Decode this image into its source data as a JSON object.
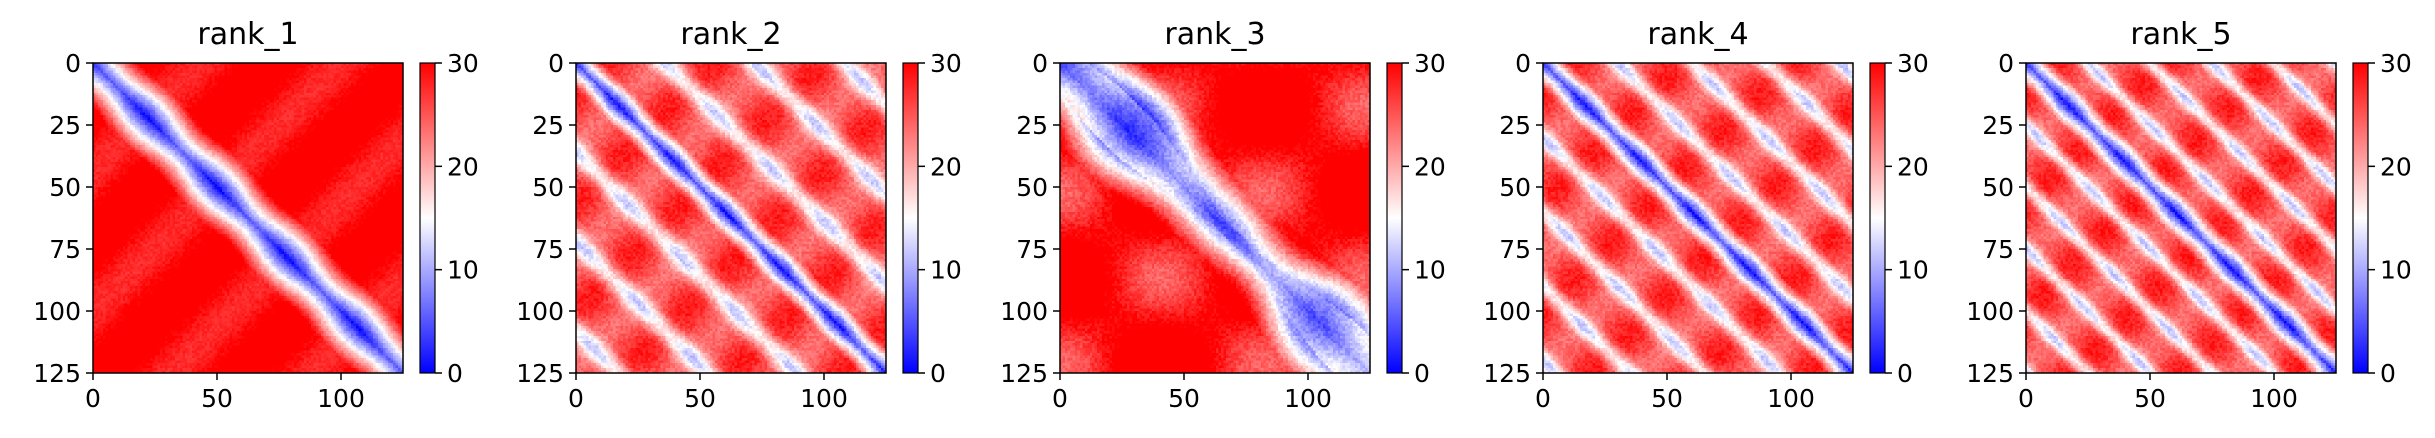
{
  "chart_data": [
    {
      "type": "heatmap",
      "title": "rank_1",
      "pattern": "rank_1",
      "x_ticks": [
        0,
        50,
        100
      ],
      "y_ticks": [
        0,
        25,
        50,
        75,
        100,
        125
      ],
      "xlim": [
        0,
        125
      ],
      "ylim": [
        125,
        0
      ],
      "colorbar": {
        "ticks": [
          0,
          10,
          20,
          30
        ],
        "range": [
          0,
          30
        ],
        "colors": [
          "#0000ff",
          "#ffffff",
          "#ff0000"
        ]
      }
    },
    {
      "type": "heatmap",
      "title": "rank_2",
      "pattern": "rank_2",
      "x_ticks": [
        0,
        50,
        100
      ],
      "y_ticks": [
        0,
        25,
        50,
        75,
        100,
        125
      ],
      "xlim": [
        0,
        125
      ],
      "ylim": [
        125,
        0
      ],
      "colorbar": {
        "ticks": [
          0,
          10,
          20,
          30
        ],
        "range": [
          0,
          30
        ],
        "colors": [
          "#0000ff",
          "#ffffff",
          "#ff0000"
        ]
      }
    },
    {
      "type": "heatmap",
      "title": "rank_3",
      "pattern": "rank_3",
      "x_ticks": [
        0,
        50,
        100
      ],
      "y_ticks": [
        0,
        25,
        50,
        75,
        100,
        125
      ],
      "xlim": [
        0,
        125
      ],
      "ylim": [
        125,
        0
      ],
      "colorbar": {
        "ticks": [
          0,
          10,
          20,
          30
        ],
        "range": [
          0,
          30
        ],
        "colors": [
          "#0000ff",
          "#ffffff",
          "#ff0000"
        ]
      }
    },
    {
      "type": "heatmap",
      "title": "rank_4",
      "pattern": "rank_4",
      "x_ticks": [
        0,
        50,
        100
      ],
      "y_ticks": [
        0,
        25,
        50,
        75,
        100,
        125
      ],
      "xlim": [
        0,
        125
      ],
      "ylim": [
        125,
        0
      ],
      "colorbar": {
        "ticks": [
          0,
          10,
          20,
          30
        ],
        "range": [
          0,
          30
        ],
        "colors": [
          "#0000ff",
          "#ffffff",
          "#ff0000"
        ]
      }
    },
    {
      "type": "heatmap",
      "title": "rank_5",
      "pattern": "rank_5",
      "x_ticks": [
        0,
        50,
        100
      ],
      "y_ticks": [
        0,
        25,
        50,
        75,
        100,
        125
      ],
      "xlim": [
        0,
        125
      ],
      "ylim": [
        125,
        0
      ],
      "colorbar": {
        "ticks": [
          0,
          10,
          20,
          30
        ],
        "range": [
          0,
          30
        ],
        "colors": [
          "#0000ff",
          "#ffffff",
          "#ff0000"
        ]
      }
    }
  ]
}
